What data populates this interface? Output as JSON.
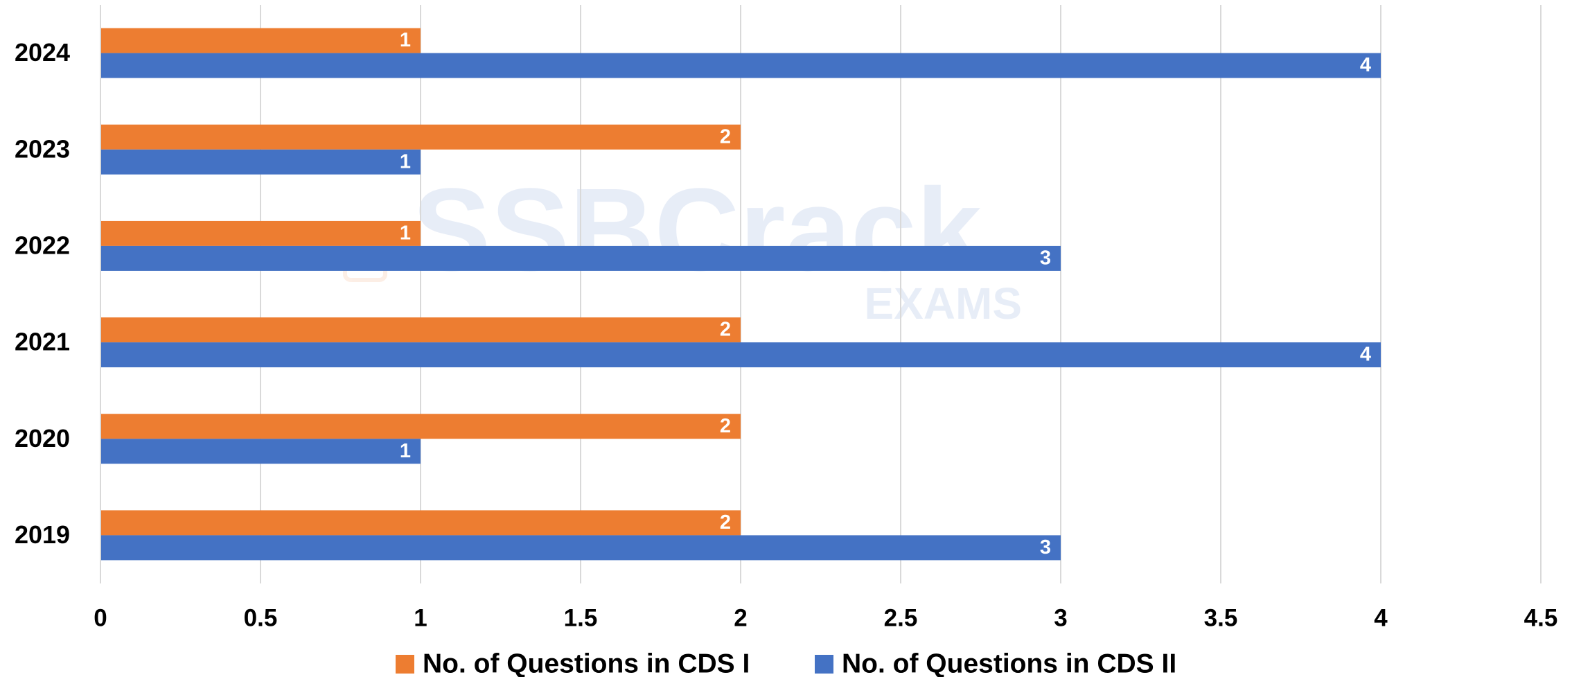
{
  "chart_data": {
    "type": "hbar",
    "categories": [
      "2024",
      "2023",
      "2022",
      "2021",
      "2020",
      "2019"
    ],
    "series": [
      {
        "name": "No. of Questions in CDS I",
        "color": "#ed7d31",
        "values": [
          1,
          2,
          1,
          2,
          2,
          2
        ]
      },
      {
        "name": "No. of Questions in CDS II",
        "color": "#4472c4",
        "values": [
          4,
          1,
          3,
          4,
          1,
          3
        ]
      }
    ],
    "xlim": [
      0,
      4.5
    ],
    "xticks": [
      0,
      0.5,
      1,
      1.5,
      2,
      2.5,
      3,
      3.5,
      4,
      4.5
    ],
    "grid": true,
    "data_labels": true,
    "legend": "bottom",
    "watermark": {
      "text": "SSBCrack",
      "subtext": "EXAMS"
    }
  }
}
